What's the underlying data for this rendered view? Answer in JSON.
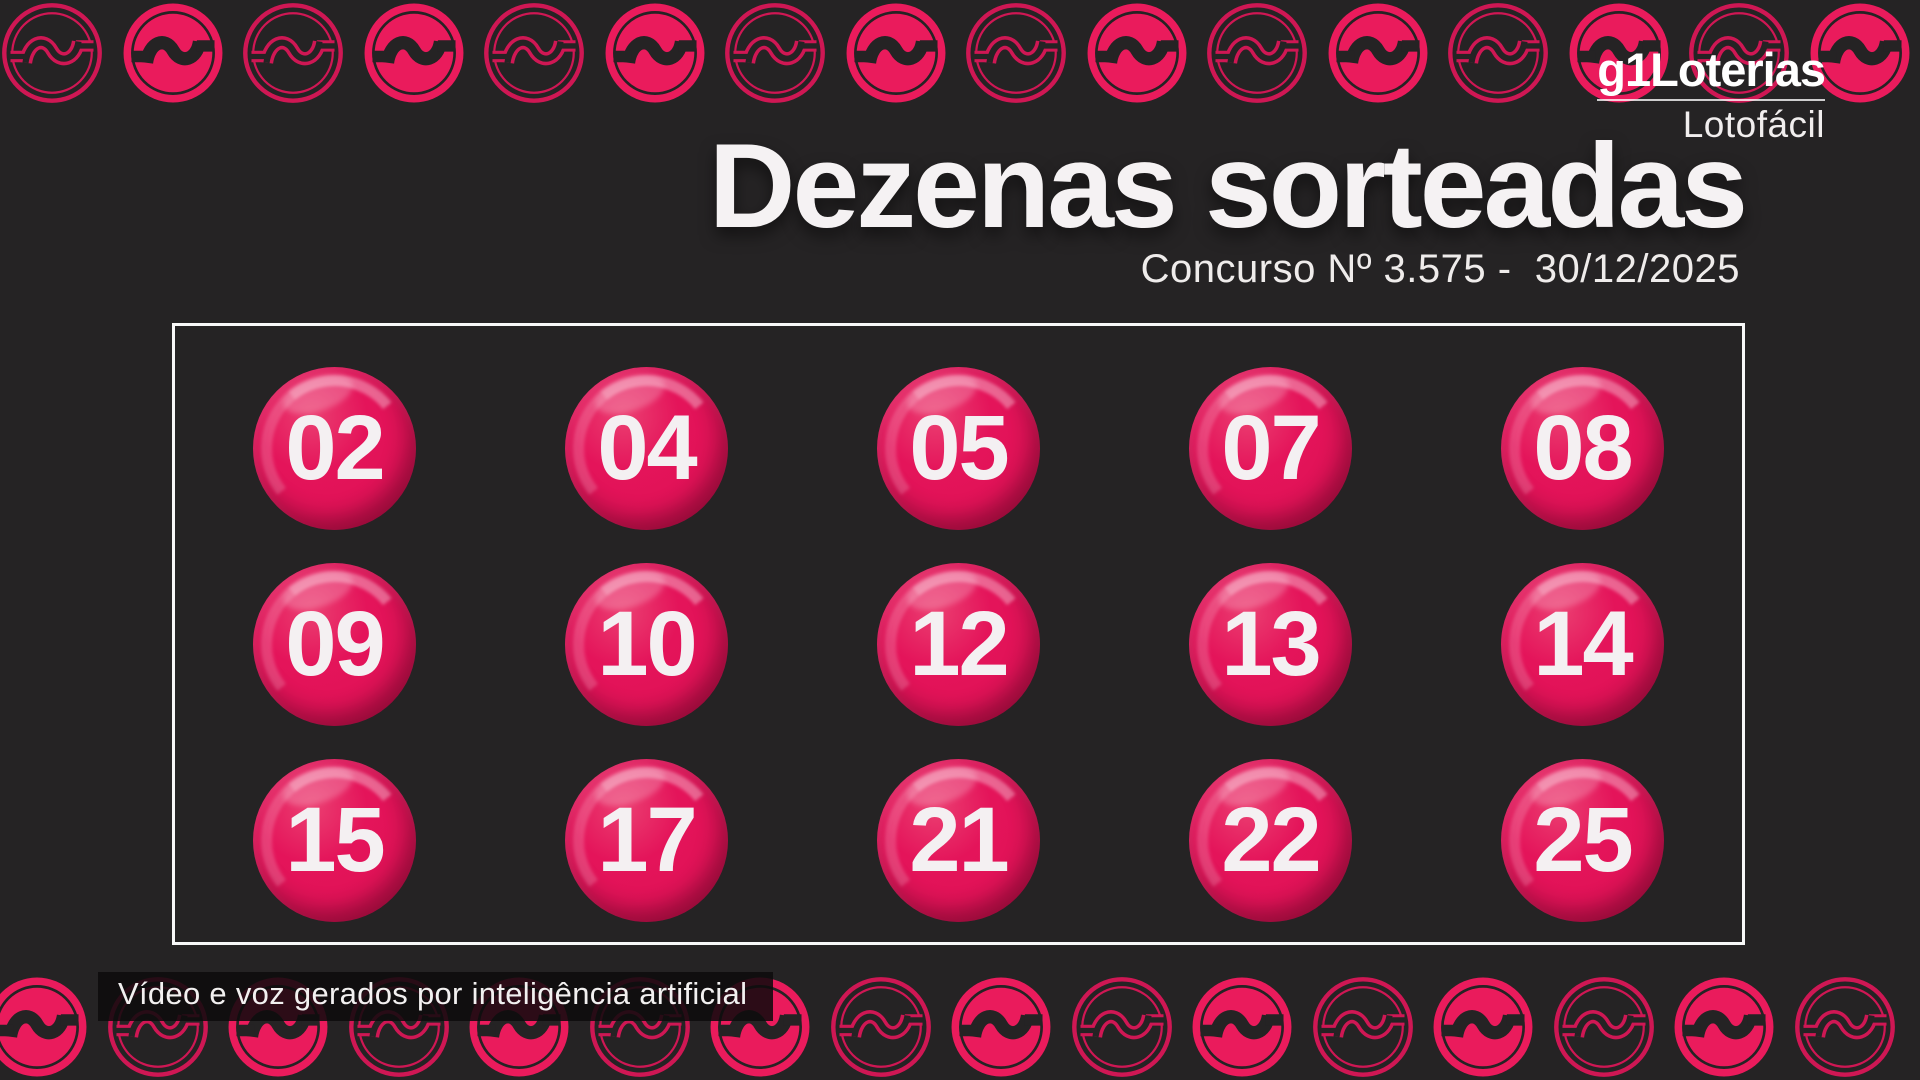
{
  "colors": {
    "background": "#252324",
    "coin_pink": "#ea1b5c",
    "coin_outline_pink": "#cf1754",
    "ball_pink": "#e4145a",
    "text_white": "#f4f1f2",
    "frame_border": "#f8f8f8"
  },
  "brand": {
    "g1": "g1",
    "name": "Loterias",
    "product": "Lotofácil"
  },
  "header": {
    "title": "Dezenas sorteadas",
    "contest_label": "Concurso Nº 3.575 -  30/12/2025",
    "contest_number": "3.575",
    "contest_date": "30/12/2025"
  },
  "board": {
    "columns": 5,
    "numbers": [
      "02",
      "04",
      "05",
      "07",
      "08",
      "09",
      "10",
      "12",
      "13",
      "14",
      "15",
      "17",
      "21",
      "22",
      "25"
    ]
  },
  "footer": {
    "disclaimer": "Vídeo e voz gerados por inteligência artificial"
  },
  "decor": {
    "coin_icon": "lottery-currency-coin-icon",
    "coins_per_row": 16,
    "top_row_first_variant": "outline",
    "bottom_row_first_variant": "filled"
  }
}
